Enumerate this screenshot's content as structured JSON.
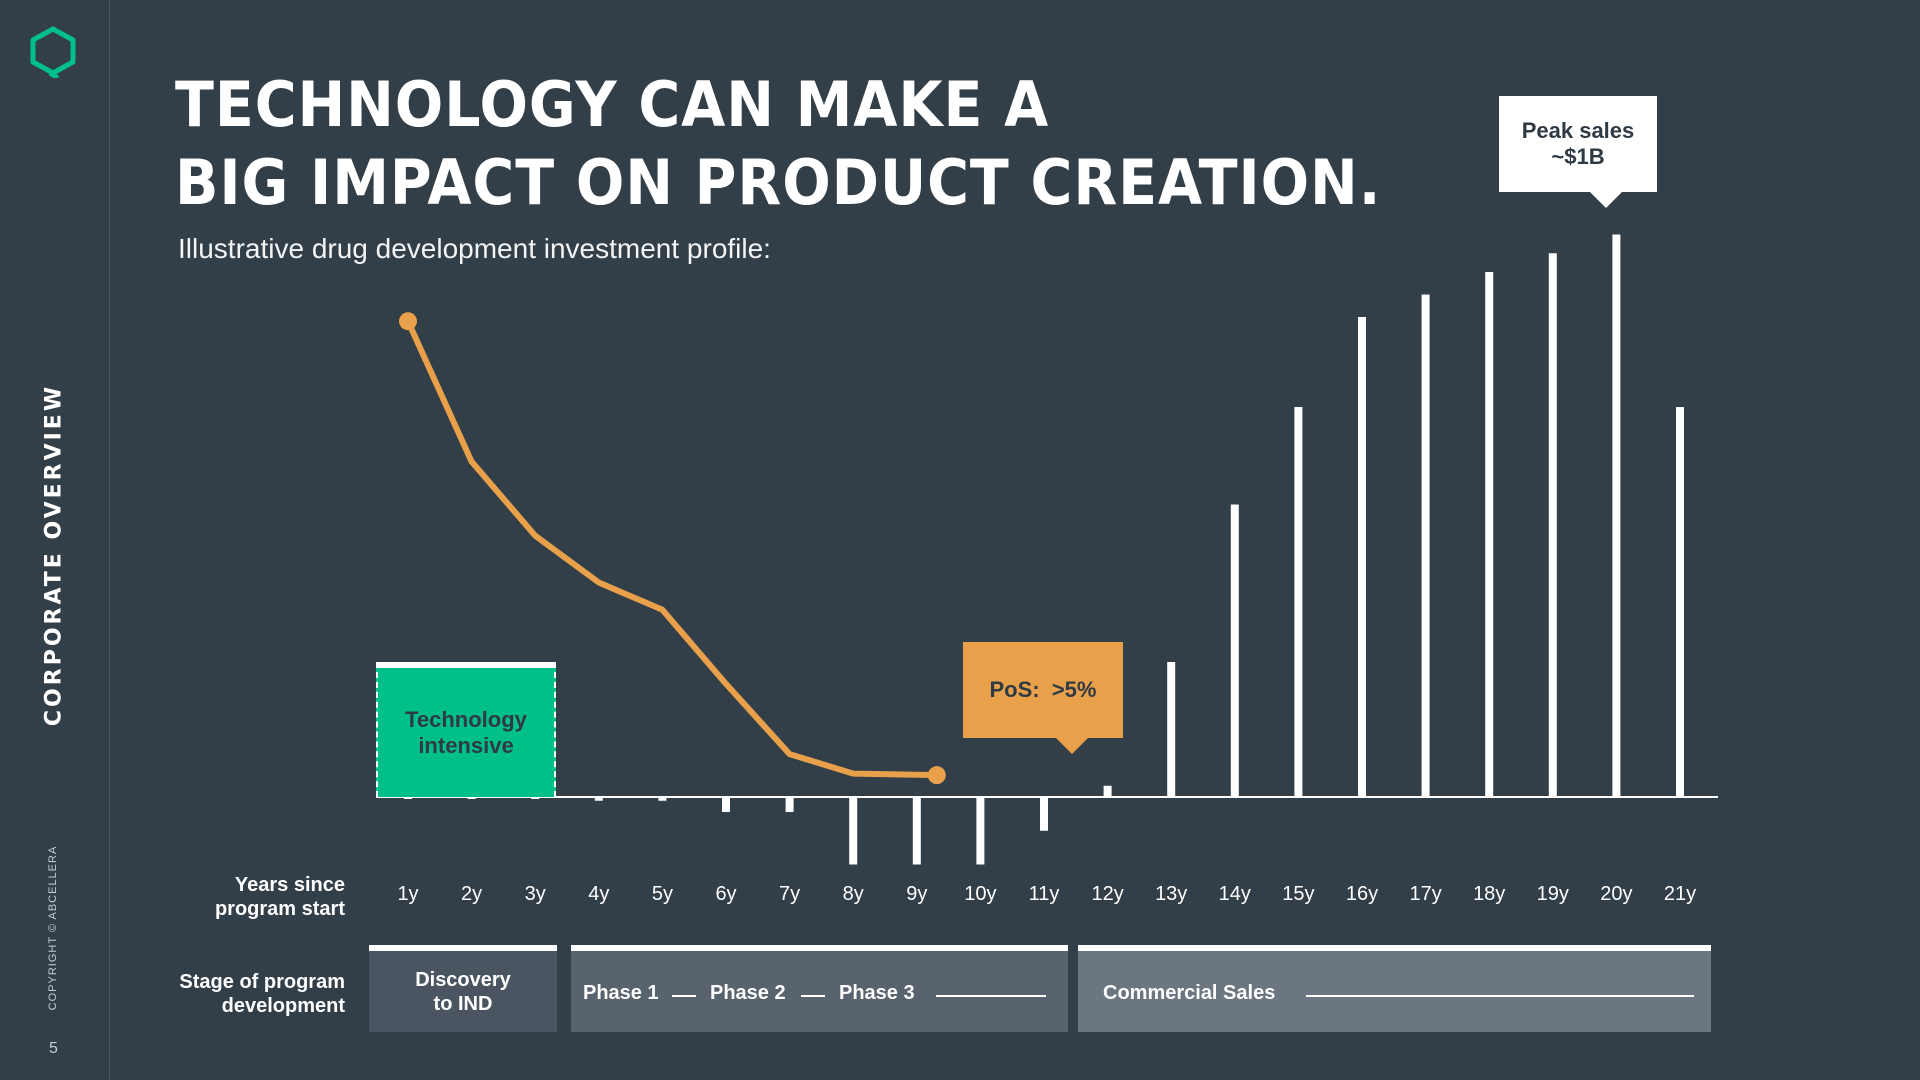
{
  "sidebar": {
    "title": "CORPORATE OVERVIEW",
    "copyright": "COPYRIGHT © ABCELLERA",
    "page_number": "5",
    "logo_icon": "hexagon-logo-icon"
  },
  "header": {
    "title_line1": "TECHNOLOGY CAN MAKE A",
    "title_line2": "BIG IMPACT ON PRODUCT CREATION.",
    "subtitle": "Illustrative drug development investment profile:"
  },
  "colors": {
    "background": "#323e48",
    "accent_green": "#00c089",
    "accent_orange": "#e8a04a",
    "bars": "#ffffff"
  },
  "chart_data": {
    "type": "bar",
    "categories": [
      "1y",
      "2y",
      "3y",
      "4y",
      "5y",
      "6y",
      "7y",
      "8y",
      "9y",
      "10y",
      "11y",
      "12y",
      "13y",
      "14y",
      "15y",
      "16y",
      "17y",
      "18y",
      "19y",
      "20y",
      "21y"
    ],
    "bar_values": [
      -0.2,
      -0.2,
      -0.2,
      -0.5,
      -0.5,
      -2,
      -2,
      -9,
      -9,
      -9,
      -4.5,
      1.5,
      18,
      39,
      52,
      64,
      67,
      70,
      72.5,
      75,
      52
    ],
    "line_series": {
      "type": "line",
      "values": [
        61,
        43,
        33.5,
        27.5,
        24,
        14.5,
        5.5,
        3,
        2.8
      ]
    },
    "value_axis": "relative (illustrative, unlabeled)",
    "ylim": [
      -12,
      78
    ],
    "row_labels": {
      "years": "Years since program start",
      "stage": "Stage of program development"
    },
    "annotations": {
      "technology": "Technology intensive",
      "pos": "PoS:  >5%",
      "peak": "Peak sales ~$1B"
    },
    "stages": {
      "discovery": "Discovery to IND",
      "phase1": "Phase 1",
      "phase2": "Phase 2",
      "phase3": "Phase 3",
      "commercial": "Commercial Sales"
    },
    "grid": false,
    "legend": "none"
  }
}
